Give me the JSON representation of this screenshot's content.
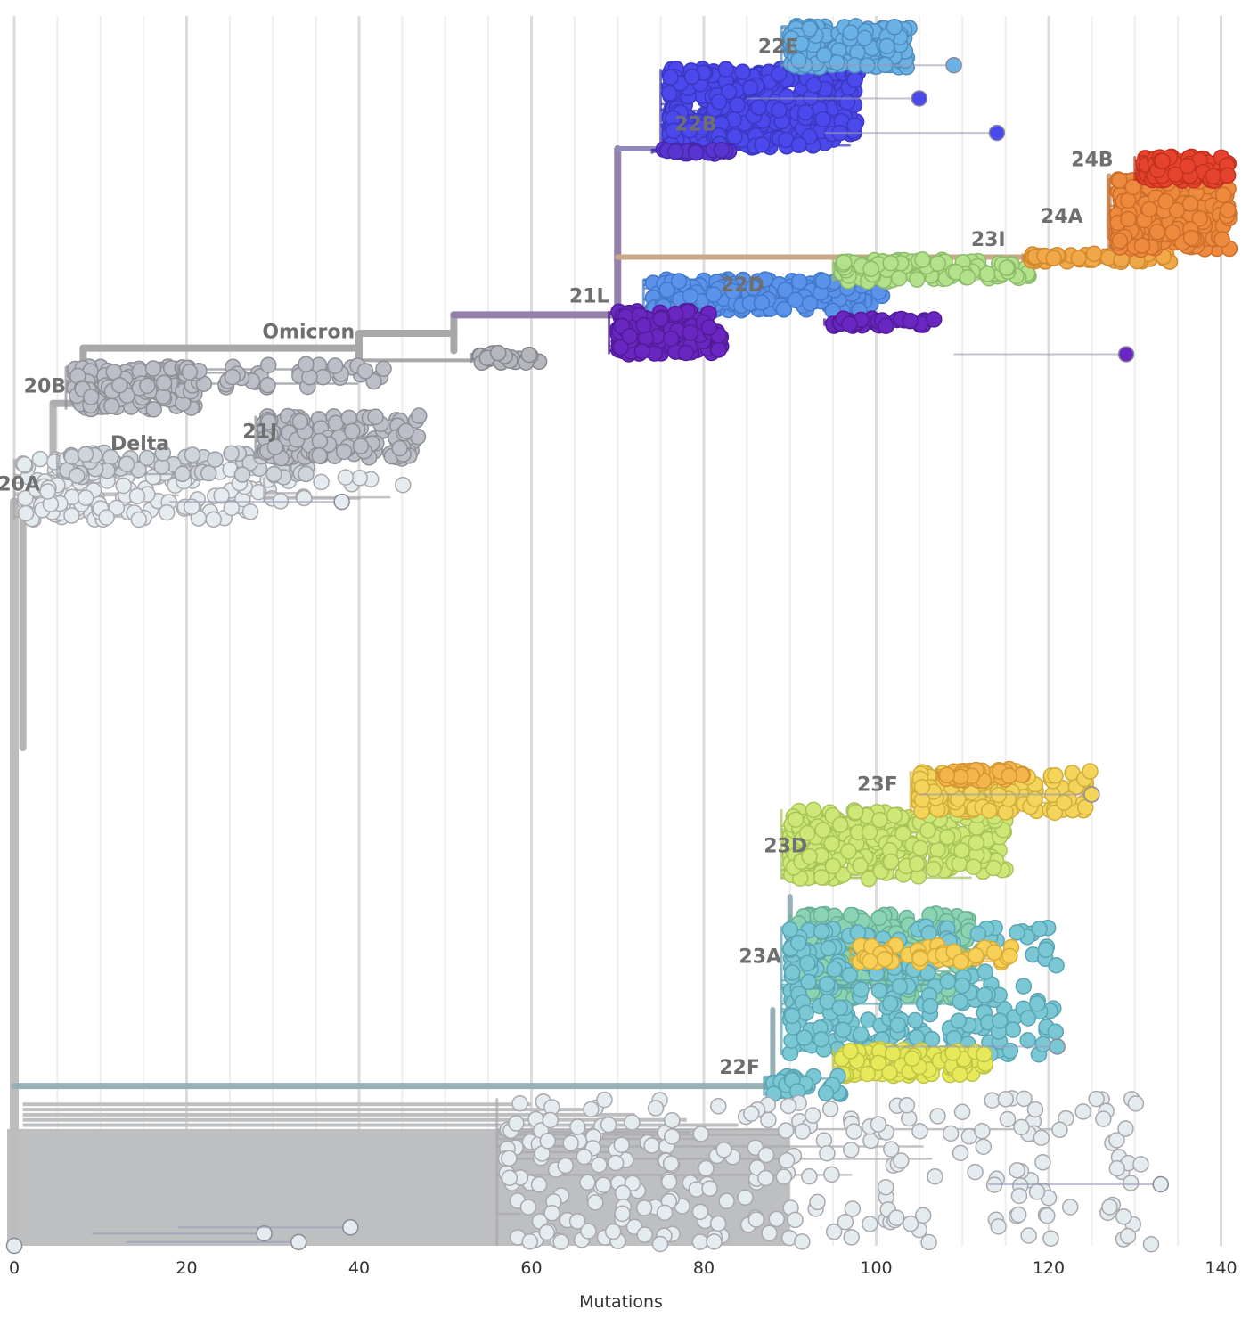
{
  "chart_data": {
    "type": "scatter",
    "subtype": "phylogenetic-tree",
    "title": "",
    "xlabel": "Mutations",
    "ylabel": "",
    "xlim": [
      0,
      142
    ],
    "ylim": [
      0,
      1000
    ],
    "x_ticks": [
      0,
      20,
      40,
      60,
      80,
      100,
      120,
      140
    ],
    "x_tick_labels": [
      "0",
      "20",
      "40",
      "60",
      "80",
      "100",
      "120",
      "140"
    ],
    "minor_grid_step": 5,
    "grid": true,
    "legend": "none",
    "y_meaning": "tip order (ordinal)",
    "branches": [
      {
        "name": "root-trunk",
        "color": "#bdbdbd",
        "x0": 0,
        "x1": 0,
        "y0": 395,
        "y1": 1000,
        "w": 10
      },
      {
        "name": "root-to-20A",
        "color": "#b5b5b7",
        "x0": 0,
        "x1": 1,
        "y0": 395,
        "y1": 395,
        "w": 8
      },
      {
        "name": "20A-trunk",
        "color": "#b5b5b7",
        "x0": 1,
        "x1": 1,
        "y0": 395,
        "y1": 595,
        "w": 8
      },
      {
        "name": "20A-vert",
        "color": "#b5b5b7",
        "x0": 4.5,
        "x1": 4.5,
        "y0": 315,
        "y1": 395,
        "w": 8
      },
      {
        "name": "to-20B",
        "color": "#adadaf",
        "x0": 4.5,
        "x1": 8,
        "y0": 315,
        "y1": 315,
        "w": 8
      },
      {
        "name": "20B-vert",
        "color": "#a8a8aa",
        "x0": 8,
        "x1": 8,
        "y0": 270,
        "y1": 315,
        "w": 8
      },
      {
        "name": "to-omicron",
        "color": "#a8a8aa",
        "x0": 8,
        "x1": 40,
        "y0": 270,
        "y1": 270,
        "w": 8
      },
      {
        "name": "omicron-vert",
        "color": "#a8a8aa",
        "x0": 40,
        "x1": 40,
        "y0": 258,
        "y1": 280,
        "w": 8
      },
      {
        "name": "omicron-to-21L",
        "color": "#a8a8aa",
        "x0": 40,
        "x1": 51,
        "y0": 258,
        "y1": 258,
        "w": 8
      },
      {
        "name": "21L-stub",
        "color": "#a8a8aa",
        "x0": 51,
        "x1": 51,
        "y0": 243,
        "y1": 272,
        "w": 8
      },
      {
        "name": "21L-branch",
        "color": "#9580ad",
        "x0": 51,
        "x1": 70,
        "y0": 243,
        "y1": 243,
        "w": 8
      },
      {
        "name": "21L-vert",
        "color": "#9580ad",
        "x0": 70,
        "x1": 70,
        "y0": 108,
        "y1": 270,
        "w": 8
      },
      {
        "name": "to-22B",
        "color": "#8f8aba",
        "x0": 70,
        "x1": 75,
        "y0": 108,
        "y1": 108,
        "w": 6
      },
      {
        "name": "23I-long",
        "color": "#c8a888",
        "x0": 70,
        "x1": 122,
        "y0": 196,
        "y1": 196,
        "w": 6
      },
      {
        "name": "omicron-sub",
        "color": "#a8a8aa",
        "x0": 40,
        "x1": 54,
        "y0": 280,
        "y1": 280,
        "w": 4
      },
      {
        "name": "22F-long",
        "color": "#96b0b6",
        "x0": 0,
        "x1": 88,
        "y0": 870,
        "y1": 870,
        "w": 7
      },
      {
        "name": "22F-vert",
        "color": "#96b0b6",
        "x0": 88,
        "x1": 88,
        "y0": 808,
        "y1": 870,
        "w": 6
      },
      {
        "name": "23A-vert",
        "color": "#96b0b6",
        "x0": 90,
        "x1": 90,
        "y0": 716,
        "y1": 808,
        "w": 6
      },
      {
        "name": "24A-vert",
        "color": "#c8a888",
        "x0": 127,
        "x1": 127,
        "y0": 130,
        "y1": 180,
        "w": 6
      }
    ],
    "series": [
      {
        "clade": "20A",
        "color": "#e5ecf0",
        "stroke": "#a9a9ad",
        "x_range": [
          1,
          30
        ],
        "y_range": [
          360,
          410
        ],
        "n": 160
      },
      {
        "clade": "20A-long",
        "color": "#e5ecf0",
        "stroke": "#a9a9ad",
        "x_range": [
          30,
          48
        ],
        "y_range": [
          375,
          395
        ],
        "n": 10
      },
      {
        "clade": "20B",
        "color": "#bcbfc7",
        "stroke": "#8e9096",
        "x_range": [
          7,
          21
        ],
        "y_range": [
          285,
          320
        ],
        "n": 150
      },
      {
        "clade": "20B-long",
        "color": "#bcbfc7",
        "stroke": "#8e9096",
        "x_range": [
          20,
          43
        ],
        "y_range": [
          283,
          302
        ],
        "n": 40
      },
      {
        "clade": "Delta",
        "color": "#cdd4da",
        "stroke": "#9a9ea4",
        "x_range": [
          6,
          34
        ],
        "y_range": [
          355,
          375
        ],
        "n": 70
      },
      {
        "clade": "21J",
        "color": "#bcbfc7",
        "stroke": "#8e9096",
        "x_range": [
          29,
          47
        ],
        "y_range": [
          325,
          360
        ],
        "n": 150
      },
      {
        "clade": "Omicron-early",
        "color": "#b5b7bd",
        "stroke": "#86888e",
        "x_range": [
          54,
          61
        ],
        "y_range": [
          274,
          282
        ],
        "n": 30
      },
      {
        "clade": "22B",
        "color": "#4b48ec",
        "stroke": "#3a37c0",
        "x_range": [
          76,
          98
        ],
        "y_range": [
          43,
          107
        ],
        "n": 380
      },
      {
        "clade": "22B-base",
        "color": "#5a34d0",
        "stroke": "#4526a8",
        "x_range": [
          75,
          83
        ],
        "y_range": [
          108,
          112
        ],
        "n": 20
      },
      {
        "clade": "22E",
        "color": "#6ab2e6",
        "stroke": "#4f8cbd",
        "x_range": [
          90,
          104
        ],
        "y_range": [
          8,
          42
        ],
        "n": 180
      },
      {
        "clade": "22D",
        "color": "#5b93ea",
        "stroke": "#4377c8",
        "x_range": [
          74,
          101
        ],
        "y_range": [
          214,
          240
        ],
        "n": 190
      },
      {
        "clade": "23I",
        "color": "#b4e28c",
        "stroke": "#8dbb6a",
        "x_range": [
          96,
          118
        ],
        "y_range": [
          198,
          216
        ],
        "n": 130
      },
      {
        "clade": "23I-orange",
        "color": "#f0a848",
        "stroke": "#d08a30",
        "x_range": [
          118,
          135
        ],
        "y_range": [
          193,
          200
        ],
        "n": 50
      },
      {
        "clade": "24A",
        "color": "#ee8a3e",
        "stroke": "#cc6e2a",
        "x_range": [
          128,
          141
        ],
        "y_range": [
          132,
          190
        ],
        "n": 350
      },
      {
        "clade": "24B",
        "color": "#e5432e",
        "stroke": "#c2321f",
        "x_range": [
          131,
          141
        ],
        "y_range": [
          114,
          134
        ],
        "n": 110
      },
      {
        "clade": "21L-purple",
        "color": "#6a26c0",
        "stroke": "#521c98",
        "x_range": [
          70,
          82
        ],
        "y_range": [
          240,
          275
        ],
        "n": 150
      },
      {
        "clade": "21L-purple-b",
        "color": "#6a26c0",
        "stroke": "#521c98",
        "x_range": [
          95,
          107
        ],
        "y_range": [
          246,
          252
        ],
        "n": 35
      },
      {
        "clade": "23A",
        "color": "#8ad4b3",
        "stroke": "#6ab094",
        "x_range": [
          91,
          111
        ],
        "y_range": [
          730,
          800
        ],
        "n": 280
      },
      {
        "clade": "22F",
        "color": "#7ac8d6",
        "stroke": "#5ba4b2",
        "x_range": [
          90,
          121
        ],
        "y_range": [
          740,
          845
        ],
        "n": 240
      },
      {
        "clade": "22F-yellow",
        "color": "#e5e95a",
        "stroke": "#bfc344",
        "x_range": [
          96,
          113
        ],
        "y_range": [
          840,
          862
        ],
        "n": 110
      },
      {
        "clade": "22F-base",
        "color": "#7ac8d6",
        "stroke": "#5ba4b2",
        "x_range": [
          88,
          96
        ],
        "y_range": [
          862,
          878
        ],
        "n": 30
      },
      {
        "clade": "23D",
        "color": "#cde877",
        "stroke": "#a8c35a",
        "x_range": [
          90,
          115
        ],
        "y_range": [
          645,
          702
        ],
        "n": 300
      },
      {
        "clade": "23F",
        "color": "#f4d45a",
        "stroke": "#d0ae3c",
        "x_range": [
          105,
          125
        ],
        "y_range": [
          614,
          648
        ],
        "n": 140
      },
      {
        "clade": "23F-orange",
        "color": "#f4b64c",
        "stroke": "#d49432",
        "x_range": [
          108,
          117
        ],
        "y_range": [
          612,
          622
        ],
        "n": 40
      },
      {
        "clade": "23A-yellow",
        "color": "#f8d058",
        "stroke": "#d6ac3a",
        "x_range": [
          98,
          117
        ],
        "y_range": [
          755,
          770
        ],
        "n": 50
      },
      {
        "clade": "basal-gray",
        "color": "#e5ecf0",
        "stroke": "#a9a9ad",
        "x_range": [
          57,
          132
        ],
        "y_range": [
          880,
          1000
        ],
        "n": 260
      }
    ],
    "outliers": [
      {
        "clade": "22B",
        "x": 114,
        "y": 95,
        "color": "#4b48ec"
      },
      {
        "clade": "22B",
        "x": 105,
        "y": 67,
        "color": "#4b48ec"
      },
      {
        "clade": "22E",
        "x": 109,
        "y": 40,
        "color": "#6ab2e6"
      },
      {
        "clade": "21L",
        "x": 129,
        "y": 275,
        "color": "#6a26c0"
      },
      {
        "clade": "23F",
        "x": 125,
        "y": 633,
        "color": "#f4d45a"
      },
      {
        "clade": "22F",
        "x": 121,
        "y": 838,
        "color": "#7ac8d6"
      },
      {
        "clade": "basal",
        "x": 133,
        "y": 950,
        "color": "#e5ecf0"
      },
      {
        "clade": "20A",
        "x": 38,
        "y": 395,
        "color": "#e5ecf0"
      },
      {
        "clade": "basal",
        "x": 0,
        "y": 1000,
        "color": "#e5ecf0"
      },
      {
        "clade": "basal",
        "x": 29,
        "y": 990,
        "color": "#e5ecf0"
      },
      {
        "clade": "basal",
        "x": 33,
        "y": 997,
        "color": "#e5ecf0"
      },
      {
        "clade": "basal",
        "x": 39,
        "y": 985,
        "color": "#e5ecf0"
      }
    ],
    "clade_labels": [
      {
        "text": "22E",
        "x": 91,
        "y": 30
      },
      {
        "text": "22B",
        "x": 81.5,
        "y": 93
      },
      {
        "text": "24B",
        "x": 127.5,
        "y": 122
      },
      {
        "text": "24A",
        "x": 124,
        "y": 168
      },
      {
        "text": "23I",
        "x": 115,
        "y": 187
      },
      {
        "text": "22D",
        "x": 87,
        "y": 224
      },
      {
        "text": "21L",
        "x": 69,
        "y": 233
      },
      {
        "text": "Omicron",
        "x": 39.5,
        "y": 262
      },
      {
        "text": "20B",
        "x": 6,
        "y": 306
      },
      {
        "text": "21J",
        "x": 30.5,
        "y": 343
      },
      {
        "text": "Delta",
        "x": 18,
        "y": 353
      },
      {
        "text": "20A",
        "x": 3,
        "y": 386
      },
      {
        "text": "23F",
        "x": 102.5,
        "y": 630
      },
      {
        "text": "23D",
        "x": 92,
        "y": 680
      },
      {
        "text": "23A",
        "x": 89,
        "y": 770
      },
      {
        "text": "22F",
        "x": 86.5,
        "y": 860
      }
    ]
  }
}
